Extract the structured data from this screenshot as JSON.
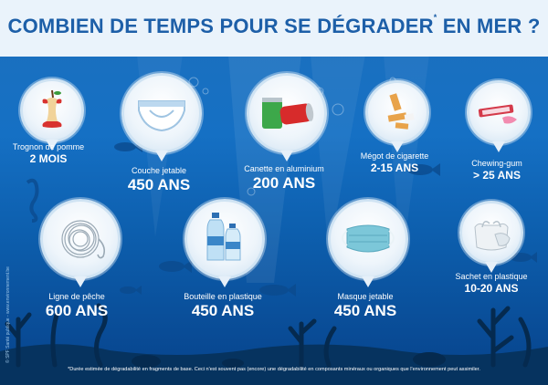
{
  "title": {
    "text": "COMBIEN DE TEMPS POUR SE DÉGRADER",
    "mark": "*",
    "text_end": " EN MER ?"
  },
  "items": [
    {
      "name": "Trognon de pomme",
      "duration": "2 MOIS",
      "icon": "apple-core-icon"
    },
    {
      "name": "Couche jetable",
      "duration": "450 ANS",
      "icon": "diaper-icon"
    },
    {
      "name": "Canette en aluminium",
      "duration": "200 ANS",
      "icon": "aluminium-can-icon"
    },
    {
      "name": "Mégot de cigarette",
      "duration": "2-15 ANS",
      "icon": "cigarette-butt-icon"
    },
    {
      "name": "Chewing-gum",
      "duration": "> 25 ANS",
      "icon": "chewing-gum-icon"
    },
    {
      "name": "Ligne de pêche",
      "duration": "600 ANS",
      "icon": "fishing-line-icon"
    },
    {
      "name": "Bouteille en plastique",
      "duration": "450 ANS",
      "icon": "plastic-bottle-icon"
    },
    {
      "name": "Masque jetable",
      "duration": "450 ANS",
      "icon": "disposable-mask-icon"
    },
    {
      "name": "Sachet en plastique",
      "duration": "10-20 ANS",
      "icon": "plastic-bag-icon"
    }
  ],
  "footnote": "*Durée estimée de dégradabilité en fragments de base. Ceci n'est souvent pas (encore) une dégradabilité en composants minéraux ou organiques que l'environnement peut assimiler.",
  "credit": "© SPF Santé publique - www.environnement.be",
  "colors": {
    "title": "#1d5fa8",
    "sea_top": "#1d6fbd",
    "sea_bottom": "#07428a",
    "header": "#eaf3fb"
  }
}
